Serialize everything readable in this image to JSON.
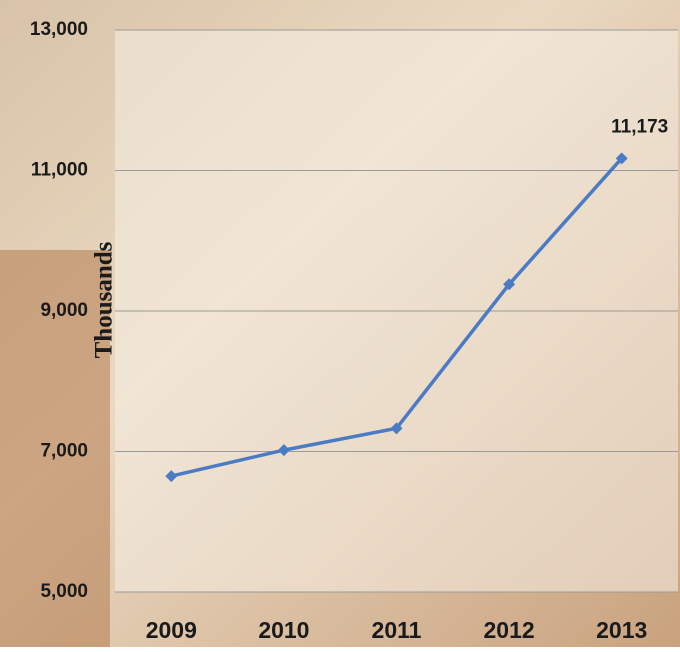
{
  "chart_data": {
    "type": "line",
    "y_label": "Thousands",
    "categories": [
      "2009",
      "2010",
      "2011",
      "2012",
      "2013"
    ],
    "series": [
      {
        "color": "#4a7bc4",
        "values": [
          6650,
          7020,
          7330,
          9380,
          11173
        ],
        "value_labels": [
          null,
          null,
          null,
          null,
          "11,173"
        ]
      }
    ],
    "ylim": [
      5000,
      13000
    ],
    "yticks": [
      {
        "value": 5000,
        "label": "5,000"
      },
      {
        "value": 7000,
        "label": "7,000"
      },
      {
        "value": 9000,
        "label": "9,000"
      },
      {
        "value": 11000,
        "label": "11,000"
      },
      {
        "value": 13000,
        "label": "13,000"
      }
    ],
    "grid": true
  }
}
